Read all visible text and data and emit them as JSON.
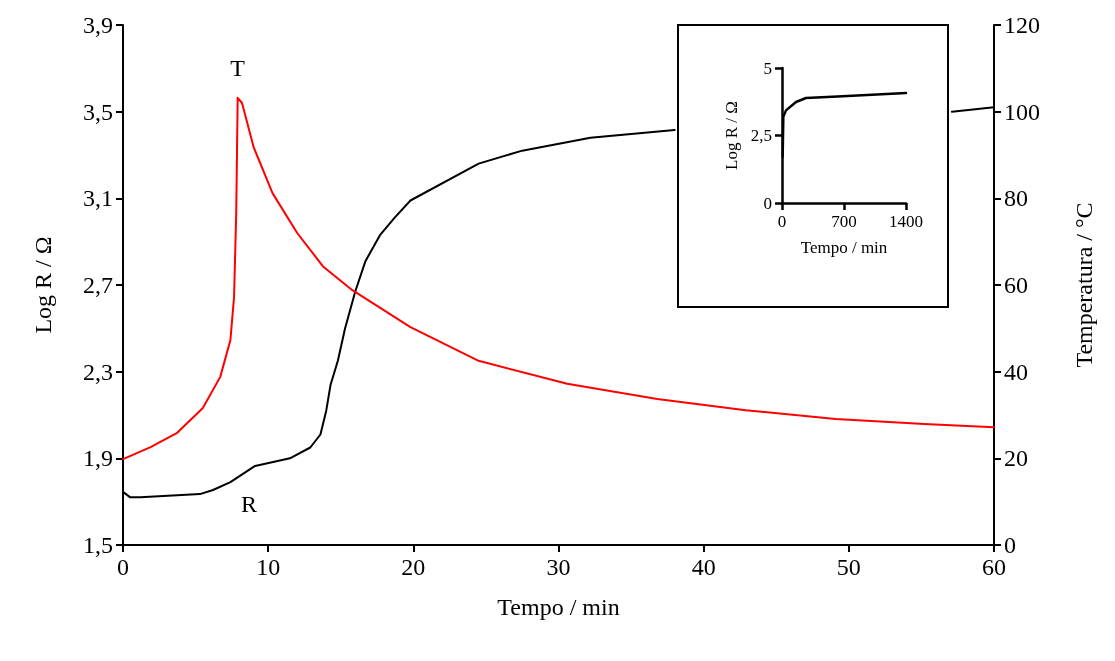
{
  "chart_data": [
    {
      "type": "line",
      "xlabel": "Tempo / min",
      "ylabel": "Log R / Ω",
      "y2label": "Temperatura / °C",
      "xlim": [
        0,
        60
      ],
      "xticks": [
        0,
        10,
        20,
        30,
        40,
        50,
        60
      ],
      "ylim": [
        1.5,
        3.9
      ],
      "yticks": [
        {
          "value": 1.5,
          "label": "1,5"
        },
        {
          "value": 1.9,
          "label": "1,9"
        },
        {
          "value": 2.3,
          "label": "2,3"
        },
        {
          "value": 2.7,
          "label": "2,7"
        },
        {
          "value": 3.1,
          "label": "3,1"
        },
        {
          "value": 3.5,
          "label": "3,5"
        },
        {
          "value": 3.9,
          "label": "3,9"
        }
      ],
      "y2lim": [
        0,
        120
      ],
      "y2ticks": [
        0,
        20,
        40,
        60,
        80,
        100,
        120
      ],
      "marker": "none",
      "line_style": "solid",
      "grid": false,
      "series": [
        {
          "name": "R",
          "color": "#000000",
          "x": [
            0,
            0.5,
            1.2,
            5.3,
            6.2,
            7.4,
            9.1,
            11.5,
            12.9,
            13.6,
            14.0,
            14.3,
            14.8,
            15.3,
            16.0,
            16.7,
            17.7,
            18.7,
            19.8,
            24.5,
            27.5,
            32.2,
            38.0,
            47.0,
            57.1,
            60
          ],
          "values": [
            1.745,
            1.72,
            1.72,
            1.735,
            1.754,
            1.79,
            1.865,
            1.9,
            1.95,
            2.01,
            2.12,
            2.24,
            2.35,
            2.5,
            2.67,
            2.81,
            2.93,
            3.01,
            3.09,
            3.26,
            3.32,
            3.38,
            3.415,
            null,
            3.5,
            3.52
          ]
        },
        {
          "name": "T",
          "color": "#ff0000",
          "axis": "y2",
          "x": [
            0,
            1.9,
            3.7,
            5.5,
            6.7,
            7.4,
            7.65,
            7.8,
            7.9,
            8.2,
            9.0,
            10.3,
            12.0,
            13.8,
            15.8,
            19.8,
            24.5,
            30.6,
            36.8,
            42.9,
            49.1,
            55.2,
            60
          ],
          "values": [
            19.8,
            22.6,
            25.8,
            31.6,
            38.8,
            47.3,
            57.2,
            76.6,
            103.2,
            102,
            91.8,
            81.2,
            72,
            64.2,
            58.8,
            50.3,
            42.5,
            37.2,
            33.7,
            31.1,
            29.1,
            27.9,
            27.2
          ]
        }
      ]
    },
    {
      "type": "line",
      "xlabel": "Tempo / min",
      "ylabel": "Log R / Ω",
      "xlim": [
        0,
        1400
      ],
      "xticks": [
        0,
        700,
        1400
      ],
      "ylim": [
        0,
        5
      ],
      "yticks": [
        0,
        {
          "value": 2.5,
          "label": "2,5"
        },
        5
      ],
      "marker": "none",
      "line_style": "solid",
      "grid": false,
      "series": [
        {
          "color": "#000000",
          "x": [
            7.5,
            15,
            45,
            158,
            271,
            685,
            1400
          ],
          "values": [
            1.7,
            3.19,
            3.43,
            3.74,
            3.89,
            3.95,
            4.07
          ]
        }
      ]
    }
  ]
}
